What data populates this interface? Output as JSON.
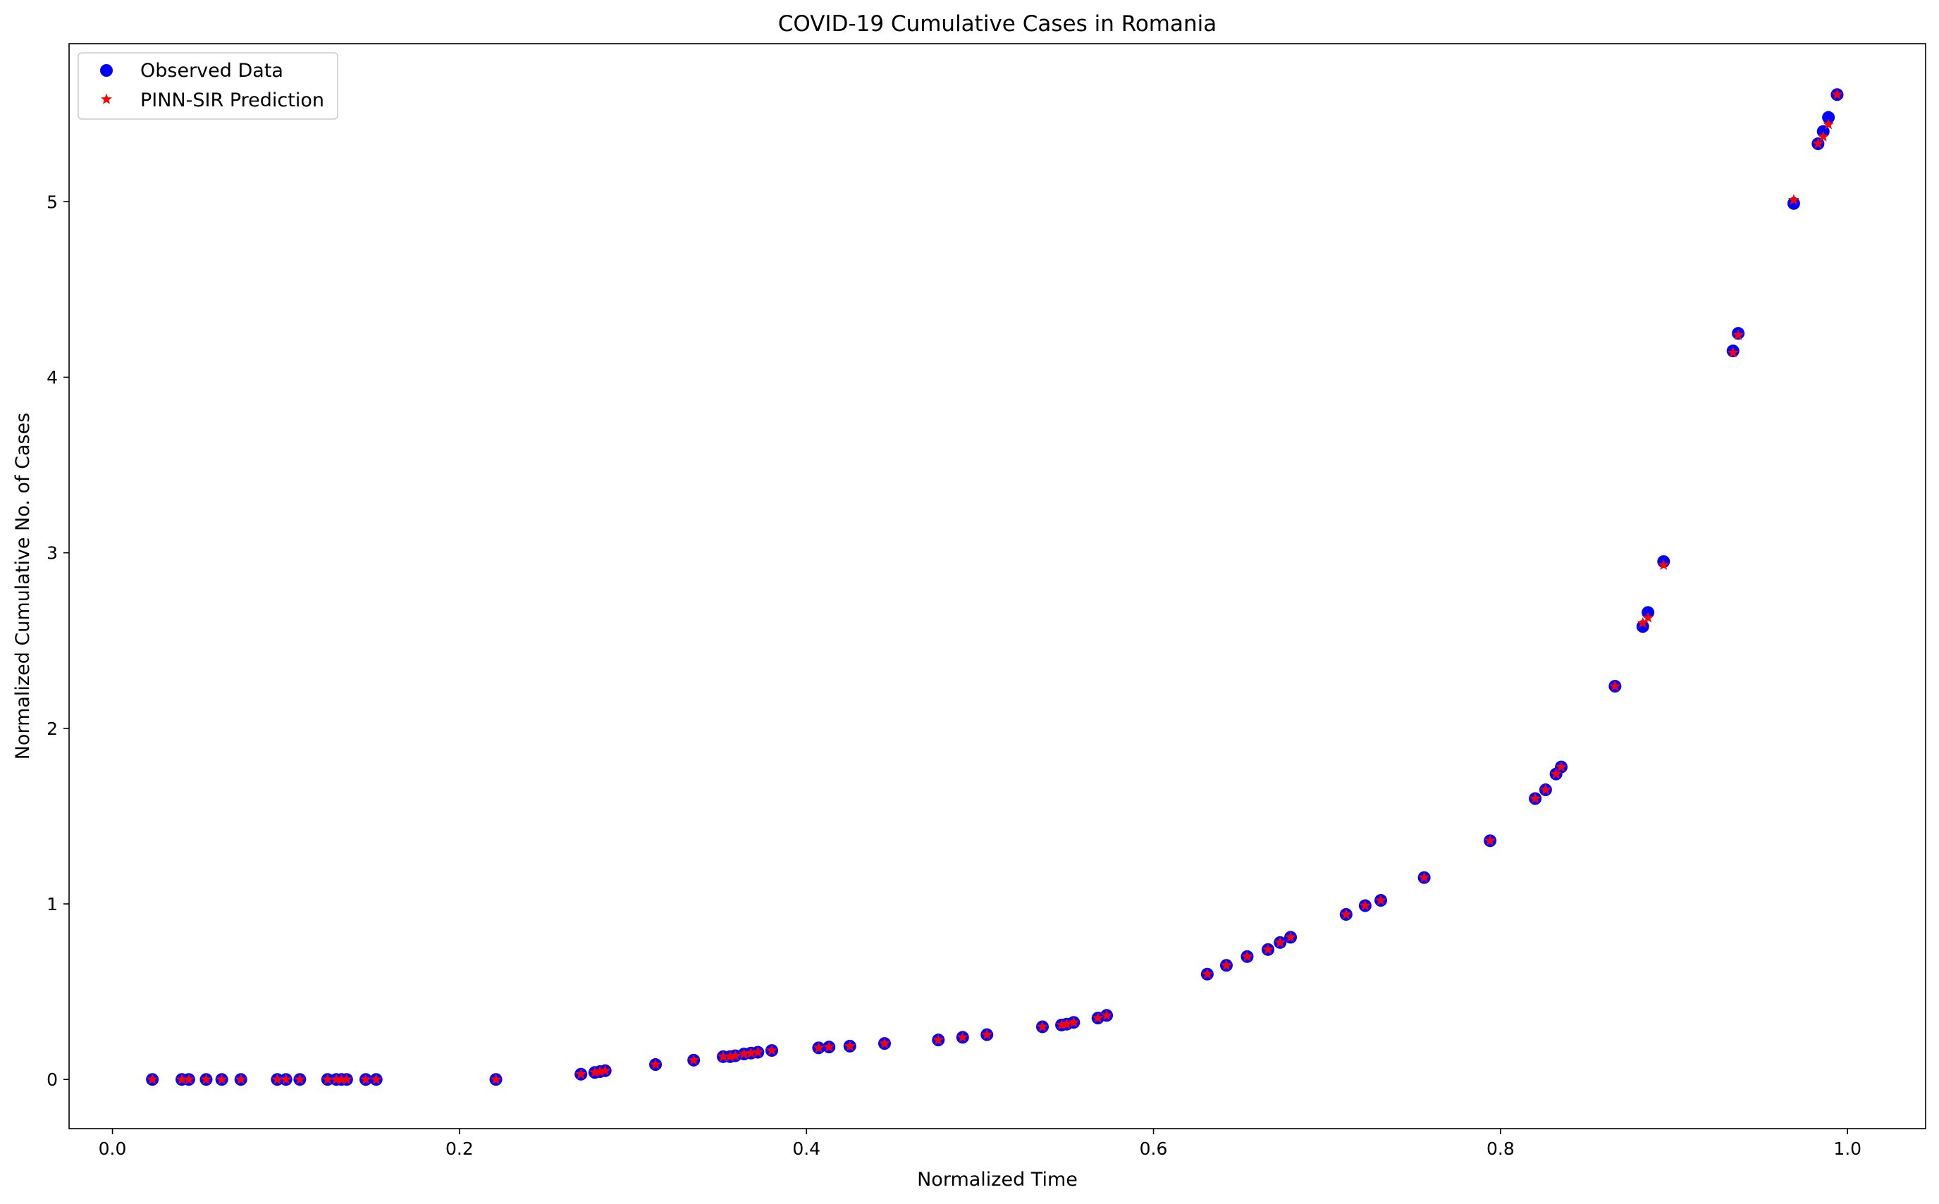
{
  "colors": {
    "observed": "#0000ff",
    "predicted": "#ff0000",
    "axes": "#000000",
    "legend_border": "#cccccc",
    "background": "#ffffff"
  },
  "chart_data": {
    "type": "scatter",
    "title": "COVID-19 Cumulative Cases in Romania",
    "xlabel": "Normalized Time",
    "ylabel": "Normalized Cumulative No. of Cases",
    "xlim": [
      -0.025,
      1.045
    ],
    "ylim": [
      -0.28,
      5.9
    ],
    "xticks": [
      0.0,
      0.2,
      0.4,
      0.6,
      0.8,
      1.0
    ],
    "xtick_labels": [
      "0.0",
      "0.2",
      "0.4",
      "0.6",
      "0.8",
      "1.0"
    ],
    "yticks": [
      0,
      1,
      2,
      3,
      4,
      5
    ],
    "ytick_labels": [
      "0",
      "1",
      "2",
      "3",
      "4",
      "5"
    ],
    "grid": false,
    "legend_position": "top-left",
    "series": [
      {
        "name": "Observed Data",
        "marker": "circle",
        "color": "#0000ff",
        "points": [
          [
            0.023,
            0.0
          ],
          [
            0.04,
            0.0
          ],
          [
            0.044,
            0.0
          ],
          [
            0.054,
            0.0
          ],
          [
            0.063,
            0.0
          ],
          [
            0.074,
            0.0
          ],
          [
            0.095,
            0.0
          ],
          [
            0.1,
            0.0
          ],
          [
            0.108,
            0.0
          ],
          [
            0.124,
            0.0
          ],
          [
            0.129,
            0.0
          ],
          [
            0.132,
            0.0
          ],
          [
            0.135,
            0.0
          ],
          [
            0.146,
            0.0
          ],
          [
            0.152,
            0.0
          ],
          [
            0.221,
            0.0
          ],
          [
            0.27,
            0.03
          ],
          [
            0.278,
            0.04
          ],
          [
            0.281,
            0.045
          ],
          [
            0.284,
            0.05
          ],
          [
            0.313,
            0.085
          ],
          [
            0.335,
            0.11
          ],
          [
            0.352,
            0.13
          ],
          [
            0.356,
            0.13
          ],
          [
            0.359,
            0.135
          ],
          [
            0.364,
            0.145
          ],
          [
            0.368,
            0.15
          ],
          [
            0.372,
            0.155
          ],
          [
            0.38,
            0.165
          ],
          [
            0.407,
            0.18
          ],
          [
            0.413,
            0.185
          ],
          [
            0.425,
            0.19
          ],
          [
            0.445,
            0.205
          ],
          [
            0.476,
            0.225
          ],
          [
            0.49,
            0.24
          ],
          [
            0.504,
            0.255
          ],
          [
            0.536,
            0.3
          ],
          [
            0.547,
            0.31
          ],
          [
            0.55,
            0.315
          ],
          [
            0.554,
            0.325
          ],
          [
            0.568,
            0.35
          ],
          [
            0.573,
            0.365
          ],
          [
            0.631,
            0.6
          ],
          [
            0.642,
            0.65
          ],
          [
            0.654,
            0.7
          ],
          [
            0.666,
            0.74
          ],
          [
            0.673,
            0.78
          ],
          [
            0.679,
            0.81
          ],
          [
            0.711,
            0.94
          ],
          [
            0.722,
            0.99
          ],
          [
            0.731,
            1.02
          ],
          [
            0.756,
            1.15
          ],
          [
            0.794,
            1.36
          ],
          [
            0.82,
            1.6
          ],
          [
            0.826,
            1.65
          ],
          [
            0.832,
            1.74
          ],
          [
            0.835,
            1.78
          ],
          [
            0.866,
            2.24
          ],
          [
            0.882,
            2.58
          ],
          [
            0.885,
            2.66
          ],
          [
            0.894,
            2.95
          ],
          [
            0.934,
            4.15
          ],
          [
            0.937,
            4.25
          ],
          [
            0.969,
            4.99
          ],
          [
            0.983,
            5.33
          ],
          [
            0.986,
            5.4
          ],
          [
            0.989,
            5.48
          ],
          [
            0.994,
            5.61
          ]
        ]
      },
      {
        "name": "PINN-SIR Prediction",
        "marker": "star",
        "color": "#ff0000",
        "points": [
          [
            0.023,
            0.0
          ],
          [
            0.04,
            0.0
          ],
          [
            0.044,
            0.0
          ],
          [
            0.054,
            0.0
          ],
          [
            0.063,
            0.0
          ],
          [
            0.074,
            0.0
          ],
          [
            0.095,
            0.0
          ],
          [
            0.1,
            0.0
          ],
          [
            0.108,
            0.0
          ],
          [
            0.124,
            0.0
          ],
          [
            0.129,
            0.0
          ],
          [
            0.132,
            0.0
          ],
          [
            0.135,
            0.0
          ],
          [
            0.146,
            0.0
          ],
          [
            0.152,
            0.0
          ],
          [
            0.221,
            0.0
          ],
          [
            0.27,
            0.03
          ],
          [
            0.278,
            0.04
          ],
          [
            0.281,
            0.045
          ],
          [
            0.284,
            0.05
          ],
          [
            0.313,
            0.085
          ],
          [
            0.335,
            0.11
          ],
          [
            0.352,
            0.13
          ],
          [
            0.356,
            0.13
          ],
          [
            0.359,
            0.135
          ],
          [
            0.364,
            0.145
          ],
          [
            0.368,
            0.15
          ],
          [
            0.372,
            0.155
          ],
          [
            0.38,
            0.165
          ],
          [
            0.407,
            0.18
          ],
          [
            0.413,
            0.185
          ],
          [
            0.425,
            0.19
          ],
          [
            0.445,
            0.205
          ],
          [
            0.476,
            0.225
          ],
          [
            0.49,
            0.24
          ],
          [
            0.504,
            0.255
          ],
          [
            0.536,
            0.3
          ],
          [
            0.547,
            0.31
          ],
          [
            0.55,
            0.315
          ],
          [
            0.554,
            0.325
          ],
          [
            0.568,
            0.35
          ],
          [
            0.573,
            0.365
          ],
          [
            0.631,
            0.6
          ],
          [
            0.642,
            0.65
          ],
          [
            0.654,
            0.7
          ],
          [
            0.666,
            0.74
          ],
          [
            0.673,
            0.78
          ],
          [
            0.679,
            0.81
          ],
          [
            0.711,
            0.94
          ],
          [
            0.722,
            0.99
          ],
          [
            0.731,
            1.02
          ],
          [
            0.756,
            1.15
          ],
          [
            0.794,
            1.36
          ],
          [
            0.82,
            1.6
          ],
          [
            0.826,
            1.65
          ],
          [
            0.832,
            1.74
          ],
          [
            0.835,
            1.78
          ],
          [
            0.866,
            2.24
          ],
          [
            0.882,
            2.6
          ],
          [
            0.885,
            2.63
          ],
          [
            0.894,
            2.93
          ],
          [
            0.934,
            4.14
          ],
          [
            0.937,
            4.24
          ],
          [
            0.969,
            5.01
          ],
          [
            0.983,
            5.33
          ],
          [
            0.986,
            5.37
          ],
          [
            0.989,
            5.44
          ],
          [
            0.994,
            5.61
          ]
        ]
      }
    ]
  }
}
